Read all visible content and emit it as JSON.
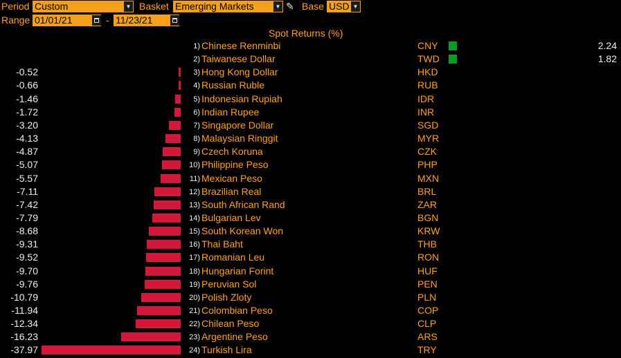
{
  "toolbar": {
    "period_label": "Period",
    "period_value": "Custom",
    "basket_label": "Basket",
    "basket_value": "Emerging Markets",
    "base_label": "Base",
    "base_value": "USD",
    "range_label": "Range",
    "range_start": "01/01/21",
    "range_sep": "-",
    "range_end": "11/23/21"
  },
  "colors": {
    "negative": "#d2193b",
    "positive": "#0a9a2a",
    "text": "#ffa028",
    "value_text": "#f0f0f0",
    "field_bg": "#f5a01a"
  },
  "chart_data": {
    "type": "bar",
    "title": "Spot Returns (%)",
    "orientation": "horizontal",
    "rows": [
      {
        "rank": "1)",
        "name": "Chinese Renminbi",
        "code": "CNY",
        "value": 2.24,
        "label": "2.24"
      },
      {
        "rank": "2)",
        "name": "Taiwanese Dollar",
        "code": "TWD",
        "value": 1.82,
        "label": "1.82"
      },
      {
        "rank": "3)",
        "name": "Hong Kong Dollar",
        "code": "HKD",
        "value": -0.52,
        "label": "-0.52"
      },
      {
        "rank": "4)",
        "name": "Russian Ruble",
        "code": "RUB",
        "value": -0.66,
        "label": "-0.66"
      },
      {
        "rank": "5)",
        "name": "Indonesian Rupiah",
        "code": "IDR",
        "value": -1.46,
        "label": "-1.46"
      },
      {
        "rank": "6)",
        "name": "Indian Rupee",
        "code": "INR",
        "value": -1.72,
        "label": "-1.72"
      },
      {
        "rank": "7)",
        "name": "Singapore Dollar",
        "code": "SGD",
        "value": -3.2,
        "label": "-3.20"
      },
      {
        "rank": "8)",
        "name": "Malaysian Ringgit",
        "code": "MYR",
        "value": -4.13,
        "label": "-4.13"
      },
      {
        "rank": "9)",
        "name": "Czech Koruna",
        "code": "CZK",
        "value": -4.87,
        "label": "-4.87"
      },
      {
        "rank": "10)",
        "name": "Philippine Peso",
        "code": "PHP",
        "value": -5.07,
        "label": "-5.07"
      },
      {
        "rank": "11)",
        "name": "Mexican Peso",
        "code": "MXN",
        "value": -5.57,
        "label": "-5.57"
      },
      {
        "rank": "12)",
        "name": "Brazilian Real",
        "code": "BRL",
        "value": -7.11,
        "label": "-7.11"
      },
      {
        "rank": "13)",
        "name": "South African Rand",
        "code": "ZAR",
        "value": -7.42,
        "label": "-7.42"
      },
      {
        "rank": "14)",
        "name": "Bulgarian Lev",
        "code": "BGN",
        "value": -7.79,
        "label": "-7.79"
      },
      {
        "rank": "15)",
        "name": "South Korean Won",
        "code": "KRW",
        "value": -8.68,
        "label": "-8.68"
      },
      {
        "rank": "16)",
        "name": "Thai Baht",
        "code": "THB",
        "value": -9.31,
        "label": "-9.31"
      },
      {
        "rank": "17)",
        "name": "Romanian Leu",
        "code": "RON",
        "value": -9.52,
        "label": "-9.52"
      },
      {
        "rank": "18)",
        "name": "Hungarian Forint",
        "code": "HUF",
        "value": -9.7,
        "label": "-9.70"
      },
      {
        "rank": "19)",
        "name": "Peruvian Sol",
        "code": "PEN",
        "value": -9.76,
        "label": "-9.76"
      },
      {
        "rank": "20)",
        "name": "Polish Zloty",
        "code": "PLN",
        "value": -10.79,
        "label": "-10.79"
      },
      {
        "rank": "21)",
        "name": "Colombian Peso",
        "code": "COP",
        "value": -11.94,
        "label": "-11.94"
      },
      {
        "rank": "22)",
        "name": "Chilean Peso",
        "code": "CLP",
        "value": -12.34,
        "label": "-12.34"
      },
      {
        "rank": "23)",
        "name": "Argentine Peso",
        "code": "ARS",
        "value": -16.23,
        "label": "-16.23"
      },
      {
        "rank": "24)",
        "name": "Turkish Lira",
        "code": "TRY",
        "value": -37.97,
        "label": "-37.97"
      }
    ]
  }
}
